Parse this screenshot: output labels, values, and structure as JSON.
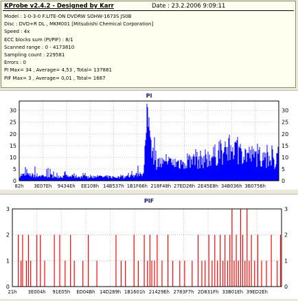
{
  "header": {
    "title": "KProbe v2.4.2 - Designed by Karr",
    "date": "Date : 23.2.2006 9:09:11"
  },
  "info_lines": [
    "Model : 1-0-3-0 F:LITE-ON DVDRW SOHW-1673S JS0B",
    "Disc : DVD+R DL , MKM001 [Mitsubishi Chemical Corporation]",
    "Speed : 4x",
    "ECC blocks sum (PI/PIF) : 8/1",
    "Scanned range : 0 - 4173810",
    "Sampling count : 229581",
    "Errors : 0",
    "PI Max= 34 , Average= 4,53 , Total= 137881",
    "PIF Max= 3 , Average= 0,01 , Total= 1687"
  ],
  "colors": {
    "pi": "#0000ff",
    "pif": "#ff0000",
    "grid": "#c8c8c8",
    "background": "#ffffff",
    "window": "#ece9d8"
  },
  "chart_data": [
    {
      "type": "bar",
      "title": "PI",
      "ylim": [
        0,
        34
      ],
      "yticks": [
        0,
        5,
        10,
        15,
        20,
        25,
        30
      ],
      "xticks": [
        "82h",
        "3E07Eh",
        "9434Eh",
        "EE108h",
        "14B537h",
        "1B1F66h",
        "218F48h",
        "27ED26h",
        "2E45E8h",
        "34B036h",
        "3B0756h"
      ],
      "grid": true,
      "profile": [
        {
          "position": 0.0,
          "level": 2.5,
          "peak": 8
        },
        {
          "position": 0.08,
          "level": 2.2,
          "peak": 6
        },
        {
          "position": 0.2,
          "level": 1.8,
          "peak": 4
        },
        {
          "position": 0.4,
          "level": 1.5,
          "peak": 3
        },
        {
          "position": 0.48,
          "level": 3,
          "peak": 8
        },
        {
          "position": 0.49,
          "level": 24,
          "peak": 34
        },
        {
          "position": 0.53,
          "level": 8,
          "peak": 17
        },
        {
          "position": 0.56,
          "level": 7,
          "peak": 12
        },
        {
          "position": 0.7,
          "level": 9,
          "peak": 15
        },
        {
          "position": 0.82,
          "level": 13,
          "peak": 21
        },
        {
          "position": 0.92,
          "level": 10,
          "peak": 16
        },
        {
          "position": 1.0,
          "level": 8,
          "peak": 15
        }
      ]
    },
    {
      "type": "bar",
      "title": "PIF",
      "ylim": [
        0,
        3
      ],
      "yticks": [
        0,
        1,
        2,
        3
      ],
      "xticks": [
        "21h",
        "3E004h",
        "91E05h",
        "ED04Bh",
        "14D289h",
        "1B1601h",
        "21429Eh",
        "2783F7h",
        "2D831Fh",
        "33B01Eh",
        "39ED2Eh"
      ],
      "grid": true,
      "spikes": [
        {
          "x": 0.022,
          "y": 2
        },
        {
          "x": 0.032,
          "y": 1
        },
        {
          "x": 0.038,
          "y": 2
        },
        {
          "x": 0.052,
          "y": 1
        },
        {
          "x": 0.06,
          "y": 2
        },
        {
          "x": 0.068,
          "y": 1
        },
        {
          "x": 0.091,
          "y": 2
        },
        {
          "x": 0.104,
          "y": 2
        },
        {
          "x": 0.12,
          "y": 1
        },
        {
          "x": 0.156,
          "y": 2
        },
        {
          "x": 0.176,
          "y": 2
        },
        {
          "x": 0.196,
          "y": 1
        },
        {
          "x": 0.216,
          "y": 2
        },
        {
          "x": 0.23,
          "y": 1
        },
        {
          "x": 0.262,
          "y": 1
        },
        {
          "x": 0.282,
          "y": 2
        },
        {
          "x": 0.314,
          "y": 1
        },
        {
          "x": 0.385,
          "y": 2
        },
        {
          "x": 0.404,
          "y": 1
        },
        {
          "x": 0.42,
          "y": 1
        },
        {
          "x": 0.452,
          "y": 2
        },
        {
          "x": 0.468,
          "y": 1
        },
        {
          "x": 0.49,
          "y": 2
        },
        {
          "x": 0.502,
          "y": 1
        },
        {
          "x": 0.511,
          "y": 2
        },
        {
          "x": 0.518,
          "y": 1
        },
        {
          "x": 0.528,
          "y": 1
        },
        {
          "x": 0.538,
          "y": 2
        },
        {
          "x": 0.556,
          "y": 1
        },
        {
          "x": 0.578,
          "y": 2
        },
        {
          "x": 0.596,
          "y": 1
        },
        {
          "x": 0.622,
          "y": 1
        },
        {
          "x": 0.64,
          "y": 1
        },
        {
          "x": 0.668,
          "y": 1
        },
        {
          "x": 0.69,
          "y": 2
        },
        {
          "x": 0.704,
          "y": 1
        },
        {
          "x": 0.716,
          "y": 1
        },
        {
          "x": 0.73,
          "y": 2
        },
        {
          "x": 0.742,
          "y": 1
        },
        {
          "x": 0.752,
          "y": 2
        },
        {
          "x": 0.762,
          "y": 1
        },
        {
          "x": 0.772,
          "y": 2
        },
        {
          "x": 0.782,
          "y": 1
        },
        {
          "x": 0.79,
          "y": 2
        },
        {
          "x": 0.8,
          "y": 1
        },
        {
          "x": 0.808,
          "y": 2
        },
        {
          "x": 0.816,
          "y": 3
        },
        {
          "x": 0.824,
          "y": 1
        },
        {
          "x": 0.832,
          "y": 2
        },
        {
          "x": 0.84,
          "y": 1
        },
        {
          "x": 0.848,
          "y": 3
        },
        {
          "x": 0.856,
          "y": 2
        },
        {
          "x": 0.864,
          "y": 1
        },
        {
          "x": 0.872,
          "y": 3
        },
        {
          "x": 0.88,
          "y": 1
        },
        {
          "x": 0.888,
          "y": 2
        },
        {
          "x": 0.9,
          "y": 1
        },
        {
          "x": 0.912,
          "y": 2
        },
        {
          "x": 0.926,
          "y": 1
        },
        {
          "x": 0.944,
          "y": 1
        },
        {
          "x": 0.962,
          "y": 2
        },
        {
          "x": 0.984,
          "y": 1
        },
        {
          "x": 0.996,
          "y": 2
        }
      ]
    }
  ]
}
